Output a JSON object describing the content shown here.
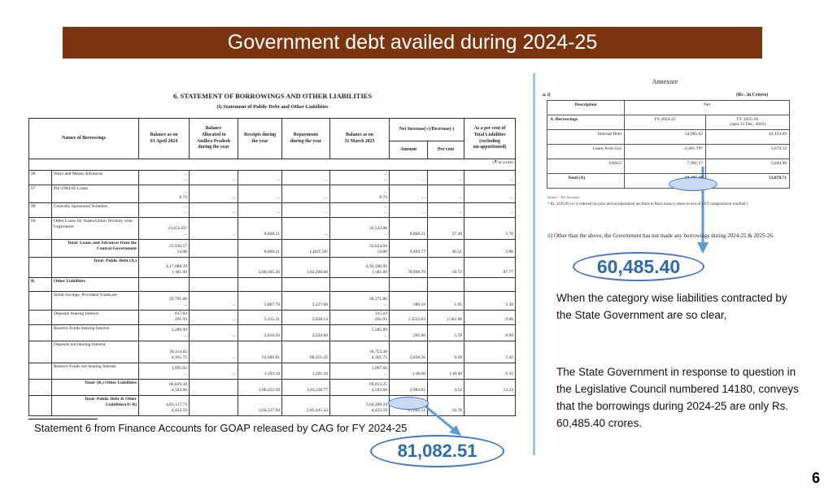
{
  "slide": {
    "title": "Government debt availed during 2024-25",
    "page_number": "6",
    "caption": "Statement 6 from Finance Accounts for GOAP released by CAG for FY 2024-25",
    "highlight_left": "81,082.51",
    "highlight_right": "60,485.40",
    "paragraph_1": "When the category wise liabilities contracted by the State Government are so clear,",
    "paragraph_2": "The State Government in response to question in the Legislative Council numbered 14180, conveys that the borrowings during 2024-25 are only Rs. 60,485.40 crores."
  },
  "statement": {
    "heading": "6. STATEMENT OF BORROWINGS AND OTHER LIABILITIES",
    "subheading": "(i) Statement of Public Debt and Other Liabilities",
    "unit": "(₹ in crore)",
    "headers": {
      "nature": "Nature of Borrowings",
      "bal_open": "Balance as on\n01 April 2024",
      "allocated": "Balance\nAllocated to\nAndhra Pradesh\nduring the year",
      "receipts": "Receipts during\nthe year",
      "repayments": "Repayments\nduring the year",
      "bal_close": "Balance as on\n31 March 2025",
      "net": "Net Increase(+)/Decrease(-)",
      "amount": "Amount",
      "percent": "Per cent",
      "share": "As a per cent of\nTotal Liabilities\n(excluding\nun-apportioned)"
    },
    "rows": [
      {
        "code": "06",
        "label": "Ways and Means Advances",
        "cells": [
          "...\n...",
          "...",
          "...",
          "...",
          "...\n...",
          "...",
          "...",
          "..."
        ]
      },
      {
        "code": "07",
        "label": "Pre-1984-85 Loans",
        "cells": [
          "...\n8.73",
          "...",
          "...",
          "...",
          "...\n8.73",
          "...",
          "...",
          "..."
        ]
      },
      {
        "code": "08",
        "label": "Centrally Sponsored Schemes",
        "cells": [
          "...\n...",
          "...",
          "...",
          "...",
          "...\n...",
          "...",
          "...",
          "..."
        ]
      },
      {
        "code": "09",
        "label": "Other Loans for States/Union Territory with Legislature",
        "cells": [
          "23,653.85¹\n...",
          "...",
          "8,868.21",
          "...",
          "32,522.06\n...",
          "8,868.21",
          "37.49",
          "5.76"
        ]
      },
      {
        "code": "",
        "label": "Total- Loans and Advances from the Central Government",
        "total": true,
        "cells": [
          "23,930.27\n14.08",
          "",
          "8,868.21",
          "(-)825.56²",
          "33,624.04\n14.08",
          "9,693.77",
          "40.51",
          "5.96"
        ]
      },
      {
        "code": "",
        "label": "Total- Public Debt (A.)",
        "total": true,
        "cells": [
          "4,17,088.29\n(-)81.09",
          "",
          "2,60,305.36",
          "1,82,206.66",
          "4,95,186.99\n(-)81.09",
          "78,098.70",
          "18.72",
          "87.77"
        ]
      },
      {
        "code": "B.",
        "label": "Other Liabilities",
        "section": true,
        "cells": [
          "",
          "",
          "",
          "",
          "",
          "",
          "",
          ""
        ]
      },
      {
        "code": "",
        "label": "Small Savings, Provident Funds,etc.",
        "cells": [
          "29,791.68\n...",
          "...",
          "5,807.78",
          "5,227.60",
          "30,371.86\n...",
          "580.18",
          "1.95",
          "5.38"
        ]
      },
      {
        "code": "",
        "label": "Deposits bearing Interest",
        "cells": [
          "837.93\n201.93",
          "...",
          "5,315.31",
          "5,838.14",
          "315.10\n201.93",
          "(-)522.83",
          "(-)62.40",
          "0.06"
        ]
      },
      {
        "code": "",
        "label": "Reserve Funds bearing Interest",
        "cells": [
          "5,289.99\n...",
          "...",
          "2,816.50",
          "2,520.60",
          "5,585.89\n...",
          "295.90",
          "5.59",
          "0.99"
        ]
      },
      {
        "code": "",
        "label": "Deposits not bearing Interest",
        "cells": [
          "28,114.82\n4,301.75",
          "...",
          "91,089.81",
          "88,451.25",
          "30,753.38\n4,301.75",
          "2,638.56",
          "9.38",
          "5.45"
        ]
      },
      {
        "code": "",
        "label": "Reserve Funds not bearing Interest",
        "cells": [
          "1,995.02\n...",
          "...",
          "1,193.18",
          "1,201.18",
          "1,987.02\n...",
          "(-)8.00",
          "(-)0.40",
          "0.35"
        ]
      },
      {
        "code": "",
        "label": "Total- (B.) Other Liabilities",
        "total": true,
        "cells": [
          "66,029.44\n4,503.68",
          "",
          "1,06,222.58",
          "1,03,238.77",
          "69,013.25\n4,503.68",
          "2,983.81",
          "4.52",
          "12.23"
        ]
      },
      {
        "code": "",
        "label": "Total- Public Debt & Other Liabilities(A+B)",
        "total": true,
        "cells": [
          "4,83,117.73\n4,422.59",
          "",
          "3,66,527.94",
          "2,85,445.43",
          "5,64,200.24\n4,422.59",
          "81,082.51",
          "16.78",
          ""
        ]
      }
    ]
  },
  "annexure": {
    "title": "Annexure",
    "section": "a. i)",
    "unit": "(Rs . in Crores)",
    "col_description": "Description",
    "col_net": "Net",
    "col_fy1": "FY 2024-25",
    "col_fy2": "FY 2025-26\n(upto 31 Dec, 2025)",
    "group": "A. Borrowings",
    "rows": [
      {
        "label": "Internal Debt",
        "fy1": "54,985.62",
        "fy2": "43,154.69"
      },
      {
        "label": "Loans from GoI",
        "fy1": "-2,401.79*",
        "fy2": "5,679.12"
      },
      {
        "label": "SASCI",
        "fy1": "7,901.57",
        "fy2": "5,044.90"
      },
      {
        "label": "Total (A)",
        "fy1": "60,485.40",
        "fy2": "53,878.71"
      }
    ],
    "source": "Source : AG Accounts",
    "footnote": "* Rs. 4193.99 crs is reduced (as prior period adjustment ino Back to Back loans to states in lieu of GST compensation shortfall )",
    "note_ii": "ii)  Other than the above, the Government has not made any borrowings during 2024-25 & 2025-26."
  }
}
